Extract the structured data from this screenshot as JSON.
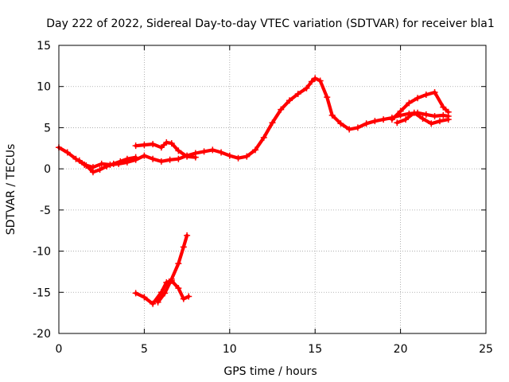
{
  "chart_data": {
    "type": "scatter",
    "title": "Day 222 of 2022, Sidereal Day-to-day VTEC variation (SDTVAR) for receiver bla1",
    "xlabel": "GPS time / hours",
    "ylabel": "SDTVAR / TECUs",
    "xlim": [
      0,
      25
    ],
    "ylim": [
      -20,
      15
    ],
    "xticks": [
      0,
      5,
      10,
      15,
      20,
      25
    ],
    "yticks": [
      -20,
      -15,
      -10,
      -5,
      0,
      5,
      10,
      15
    ],
    "xtick_labels": [
      "0",
      "5",
      "10",
      "15",
      "20",
      "25"
    ],
    "ytick_labels": [
      "-20",
      "-15",
      "-10",
      "-5",
      "0",
      "5",
      "10",
      "15"
    ],
    "grid": true,
    "marker": "+",
    "color": "#ff0000",
    "series": [
      {
        "name": "main-track",
        "x": [
          0.0,
          0.5,
          1.0,
          1.5,
          2.0,
          2.5,
          3.0,
          3.5,
          4.0,
          4.5,
          5.0,
          5.5,
          6.0,
          6.5,
          7.0,
          7.5,
          8.0,
          8.5,
          9.0,
          9.5,
          10.0,
          10.5,
          11.0,
          11.5,
          12.0,
          12.5,
          13.0,
          13.5,
          14.0,
          14.5,
          14.8,
          15.0,
          15.3,
          15.7,
          16.0,
          16.5,
          17.0,
          17.5,
          18.0,
          18.5,
          19.0,
          19.5,
          20.0,
          20.5,
          21.0,
          21.5,
          22.0,
          22.5,
          22.8
        ],
        "y": [
          2.6,
          2.0,
          1.2,
          0.5,
          0.2,
          0.6,
          0.5,
          0.6,
          0.8,
          1.1,
          1.6,
          1.2,
          0.9,
          1.1,
          1.2,
          1.6,
          1.9,
          2.1,
          2.3,
          2.0,
          1.6,
          1.3,
          1.5,
          2.3,
          3.8,
          5.6,
          7.2,
          8.3,
          9.1,
          9.8,
          10.6,
          11.0,
          10.7,
          8.7,
          6.5,
          5.5,
          4.8,
          5.0,
          5.5,
          5.8,
          6.0,
          6.2,
          6.5,
          6.7,
          6.8,
          6.6,
          6.4,
          6.5,
          6.4
        ]
      },
      {
        "name": "morning-offset-track",
        "x": [
          1.2,
          1.6,
          2.0,
          2.4,
          2.8,
          3.2,
          3.6,
          4.0,
          4.5
        ],
        "y": [
          1.0,
          0.4,
          -0.4,
          -0.1,
          0.3,
          0.6,
          0.9,
          1.2,
          1.4
        ]
      },
      {
        "name": "midday-arc",
        "x": [
          4.5,
          5.0,
          5.5,
          6.0,
          6.3,
          6.6,
          7.0,
          7.5,
          8.0
        ],
        "y": [
          2.8,
          2.9,
          3.0,
          2.6,
          3.2,
          3.1,
          2.2,
          1.5,
          1.4
        ]
      },
      {
        "name": "evening-upper-track",
        "x": [
          19.5,
          20.0,
          20.5,
          21.0,
          21.5,
          22.0,
          22.5,
          22.8
        ],
        "y": [
          6.0,
          7.0,
          8.0,
          8.6,
          9.0,
          9.3,
          7.5,
          6.9
        ]
      },
      {
        "name": "evening-lower-track",
        "x": [
          19.8,
          20.3,
          20.8,
          21.3,
          21.8,
          22.3,
          22.8
        ],
        "y": [
          5.6,
          6.0,
          6.8,
          6.1,
          5.5,
          5.8,
          6.0
        ]
      },
      {
        "name": "low-outlier-track-a",
        "x": [
          4.5,
          5.0,
          5.5,
          6.0,
          6.3,
          6.6,
          7.0,
          7.3,
          7.6
        ],
        "y": [
          -15.1,
          -15.6,
          -16.4,
          -15.0,
          -13.8,
          -13.6,
          -14.5,
          -15.8,
          -15.5
        ]
      },
      {
        "name": "low-outlier-track-b",
        "x": [
          5.8,
          6.2,
          6.6,
          7.0,
          7.3,
          7.5
        ],
        "y": [
          -16.2,
          -15.1,
          -13.4,
          -11.5,
          -9.5,
          -8.1
        ]
      }
    ]
  }
}
